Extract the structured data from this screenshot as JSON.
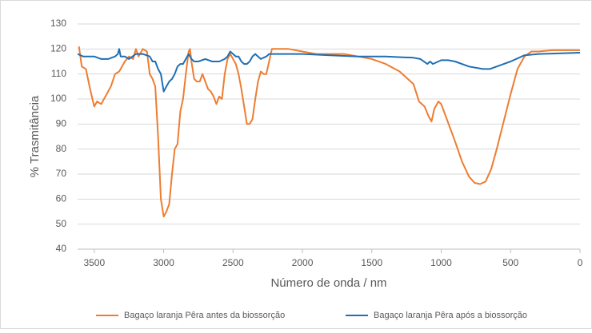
{
  "chart_data": {
    "type": "line",
    "xlabel": "Número de onda / nm",
    "ylabel": "% Trasmitância",
    "xlim": [
      3620,
      0
    ],
    "xticks": [
      3500,
      3000,
      2500,
      2000,
      1500,
      1000,
      500,
      0
    ],
    "ylim": [
      40,
      130
    ],
    "yticks": [
      40,
      50,
      60,
      70,
      80,
      90,
      100,
      110,
      120,
      130
    ],
    "grid": true,
    "legend": "bottom",
    "series": [
      {
        "name": "Bagaço laranja Pêra antes da biossorção",
        "color": "#ed7d31",
        "x": [
          3610,
          3590,
          3560,
          3530,
          3500,
          3480,
          3450,
          3420,
          3380,
          3350,
          3320,
          3280,
          3250,
          3220,
          3200,
          3180,
          3150,
          3120,
          3100,
          3080,
          3060,
          3040,
          3020,
          3000,
          2980,
          2960,
          2940,
          2920,
          2900,
          2880,
          2860,
          2840,
          2820,
          2810,
          2800,
          2780,
          2760,
          2740,
          2720,
          2700,
          2680,
          2660,
          2640,
          2620,
          2600,
          2580,
          2560,
          2540,
          2520,
          2500,
          2480,
          2460,
          2440,
          2420,
          2400,
          2380,
          2360,
          2340,
          2320,
          2300,
          2280,
          2260,
          2240,
          2220,
          2200,
          2100,
          2000,
          1900,
          1800,
          1700,
          1600,
          1500,
          1400,
          1300,
          1200,
          1160,
          1120,
          1090,
          1070,
          1050,
          1020,
          1000,
          960,
          900,
          850,
          800,
          760,
          720,
          680,
          640,
          600,
          550,
          500,
          450,
          400,
          350,
          300,
          200,
          0
        ],
        "values": [
          121,
          113,
          112,
          104,
          97,
          99,
          98,
          101,
          105,
          110,
          111,
          115,
          117,
          116,
          120,
          117,
          120,
          119,
          110,
          108,
          105,
          85,
          60,
          53,
          55,
          58,
          70,
          80,
          82,
          95,
          100,
          110,
          119,
          120,
          115,
          108,
          107,
          107,
          110,
          107,
          104,
          103,
          101,
          98,
          101,
          100,
          110,
          116,
          118,
          116,
          114,
          110,
          104,
          97,
          90,
          90,
          92,
          100,
          107,
          111,
          110,
          110,
          115,
          120,
          120,
          120,
          119,
          118,
          118,
          118,
          117,
          116,
          114,
          111,
          106,
          99,
          97,
          93,
          91,
          96,
          99,
          98,
          92,
          83,
          75,
          69,
          66.5,
          66,
          67,
          72,
          80,
          91,
          102,
          112,
          117,
          119,
          119,
          119.5,
          119.5
        ]
      },
      {
        "name": "Bagaço laranja Pêra após a biossorção",
        "color": "#1f6fb4",
        "x": [
          3620,
          3580,
          3550,
          3500,
          3450,
          3400,
          3350,
          3330,
          3320,
          3310,
          3280,
          3250,
          3200,
          3150,
          3100,
          3080,
          3060,
          3040,
          3020,
          3000,
          2980,
          2960,
          2940,
          2920,
          2900,
          2880,
          2860,
          2840,
          2820,
          2800,
          2780,
          2750,
          2700,
          2650,
          2600,
          2560,
          2540,
          2520,
          2500,
          2480,
          2460,
          2440,
          2420,
          2400,
          2380,
          2360,
          2340,
          2320,
          2300,
          2260,
          2240,
          2200,
          2000,
          1800,
          1600,
          1400,
          1200,
          1150,
          1100,
          1080,
          1060,
          1000,
          950,
          900,
          800,
          700,
          650,
          600,
          500,
          400,
          300,
          0
        ],
        "values": [
          118,
          117,
          117,
          117,
          116,
          116,
          117,
          118,
          120,
          117,
          117,
          116,
          118,
          118,
          117,
          115,
          115,
          112,
          110,
          103,
          105,
          107,
          108,
          110,
          113,
          114,
          114,
          116,
          118,
          116,
          115,
          115,
          116,
          115,
          115,
          116,
          117,
          119,
          118,
          117,
          117,
          115,
          114,
          114,
          115,
          117,
          118,
          117,
          116,
          117,
          118,
          118,
          118,
          117.5,
          117,
          117,
          116.5,
          116,
          114,
          115,
          114,
          115.5,
          115.5,
          115,
          113,
          112,
          112,
          113,
          115,
          117.5,
          118,
          118.5
        ]
      }
    ]
  }
}
